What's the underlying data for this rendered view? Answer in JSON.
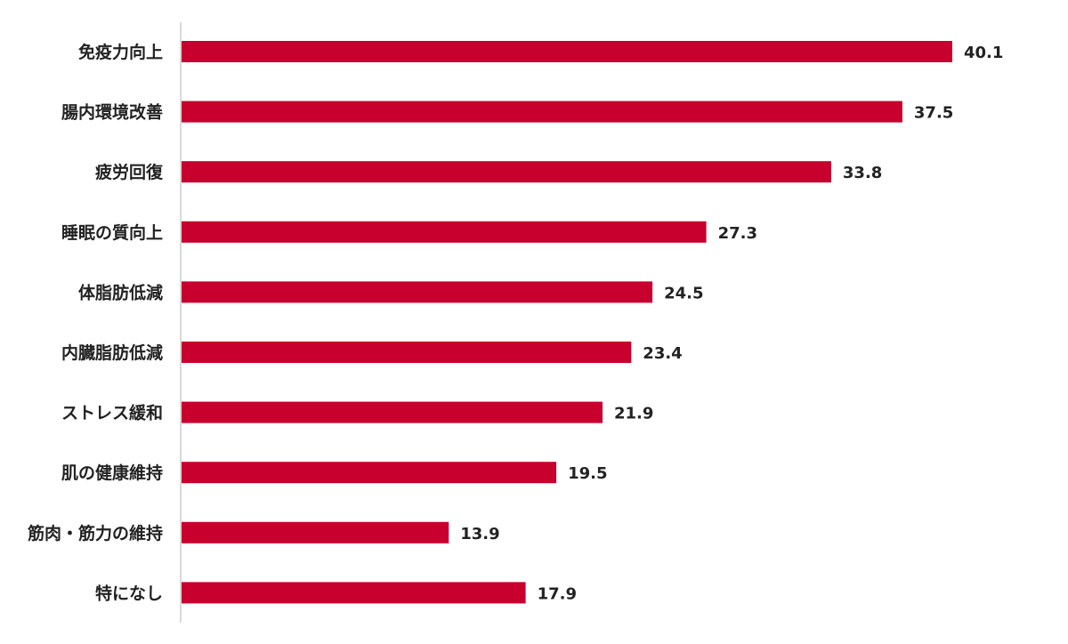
{
  "chart_data": {
    "type": "bar",
    "orientation": "horizontal",
    "categories": [
      "免疫力向上",
      "腸内環境改善",
      "疲労回復",
      "睡眠の質向上",
      "体脂肪低減",
      "内臓脂肪低減",
      "ストレス緩和",
      "肌の健康維持",
      "筋肉・筋力の維持",
      "特になし"
    ],
    "values": [
      40.1,
      37.5,
      33.8,
      27.3,
      24.5,
      23.4,
      21.9,
      19.5,
      13.9,
      17.9
    ],
    "value_labels": [
      "40.1",
      "37.5",
      "33.8",
      "27.3",
      "24.5",
      "23.4",
      "21.9",
      "19.5",
      "13.9",
      "17.9"
    ],
    "xlim": [
      0,
      40.1
    ],
    "grid": false,
    "legend": "none",
    "colors": {
      "bar": "#C8002D",
      "axis": "#d9d9d9",
      "text": "#222222"
    }
  }
}
